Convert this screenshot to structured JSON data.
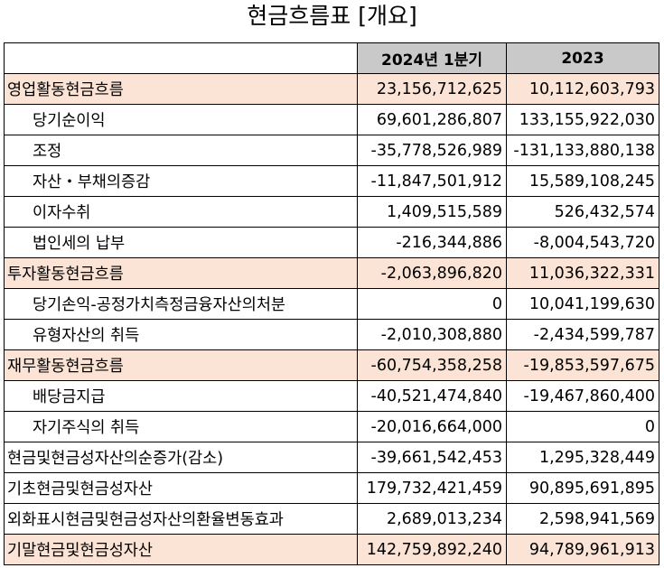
{
  "title": "현금흐름표 [개요]",
  "columns": [
    "2024년 1분기",
    "2023"
  ],
  "rows": [
    {
      "label": "영업활동현금흐름",
      "v1": "23,156,712,625",
      "v2": "10,112,603,793",
      "highlight": true,
      "indent": false
    },
    {
      "label": "당기순이익",
      "v1": "69,601,286,807",
      "v2": "133,155,922,030",
      "highlight": false,
      "indent": true
    },
    {
      "label": "조정",
      "v1": "-35,778,526,989",
      "v2": "-131,133,880,138",
      "highlight": false,
      "indent": true
    },
    {
      "label": "자산・부채의증감",
      "v1": "-11,847,501,912",
      "v2": "15,589,108,245",
      "highlight": false,
      "indent": true
    },
    {
      "label": "이자수취",
      "v1": "1,409,515,589",
      "v2": "526,432,574",
      "highlight": false,
      "indent": true
    },
    {
      "label": "법인세의 납부",
      "v1": "-216,344,886",
      "v2": "-8,004,543,720",
      "highlight": false,
      "indent": true
    },
    {
      "label": "투자활동현금흐름",
      "v1": "-2,063,896,820",
      "v2": "11,036,322,331",
      "highlight": true,
      "indent": false
    },
    {
      "label": "당기손익-공정가치측정금융자산의처분",
      "v1": "0",
      "v2": "10,041,199,630",
      "highlight": false,
      "indent": true
    },
    {
      "label": "유형자산의 취득",
      "v1": "-2,010,308,880",
      "v2": "-2,434,599,787",
      "highlight": false,
      "indent": true
    },
    {
      "label": "재무활동현금흐름",
      "v1": "-60,754,358,258",
      "v2": "-19,853,597,675",
      "highlight": true,
      "indent": false
    },
    {
      "label": "배당금지급",
      "v1": "-40,521,474,840",
      "v2": "-19,467,860,400",
      "highlight": false,
      "indent": true
    },
    {
      "label": "자기주식의 취득",
      "v1": "-20,016,664,000",
      "v2": "0",
      "highlight": false,
      "indent": true
    },
    {
      "label": "현금및현금성자산의순증가(감소)",
      "v1": "-39,661,542,453",
      "v2": "1,295,328,449",
      "highlight": false,
      "indent": false
    },
    {
      "label": "기초현금및현금성자산",
      "v1": "179,732,421,459",
      "v2": "90,895,691,895",
      "highlight": false,
      "indent": false
    },
    {
      "label": "외화표시현금및현금성자산의환율변동효과",
      "v1": "2,689,013,234",
      "v2": "2,598,941,569",
      "highlight": false,
      "indent": false
    },
    {
      "label": "기말현금및현금성자산",
      "v1": "142,759,892,240",
      "v2": "94,789,961,913",
      "highlight": true,
      "indent": false
    }
  ]
}
